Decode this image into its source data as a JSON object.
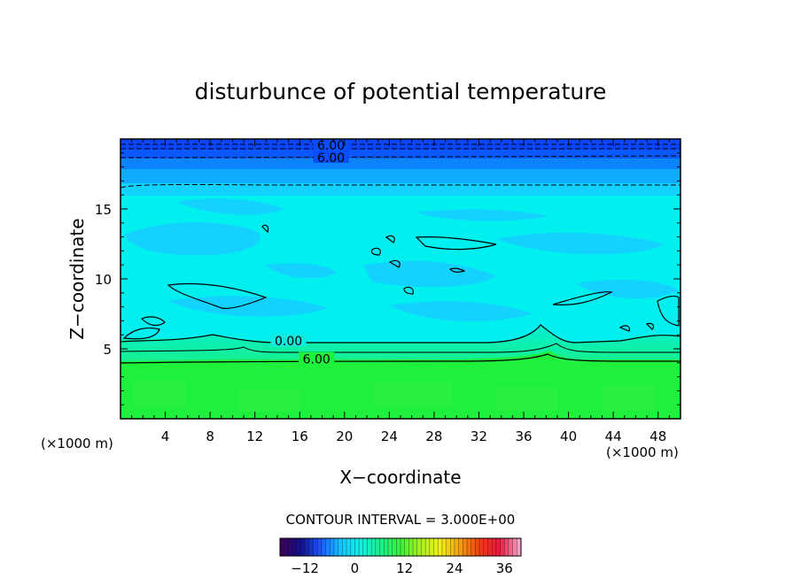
{
  "chart_data": {
    "type": "heatmap",
    "title": "disturbunce of potential temperature",
    "xlabel": "X−coordinate",
    "ylabel": "Z−coordinate",
    "x_unit_left": "(×1000 m)",
    "x_unit_right": "(×1000 m)",
    "xlim": [
      0,
      50
    ],
    "ylim": [
      0,
      20
    ],
    "x_ticks": [
      4,
      8,
      12,
      16,
      20,
      24,
      28,
      32,
      36,
      40,
      44,
      48
    ],
    "y_ticks": [
      5,
      10,
      15
    ],
    "contour_interval_text": "CONTOUR INTERVAL = 3.000E+00",
    "contour_labels": [
      {
        "text": "6.00",
        "x": 18.8,
        "z": 19.5
      },
      {
        "text": "6.00",
        "x": 18.8,
        "z": 18.6
      },
      {
        "text": "0.00",
        "x": 15.0,
        "z": 5.5
      },
      {
        "text": "6.00",
        "x": 17.5,
        "z": 4.2
      }
    ],
    "colorbar": {
      "min": -18,
      "max": 40,
      "ticks": [
        -12,
        0,
        12,
        24,
        36
      ],
      "stops": [
        "#3a005a",
        "#12128e",
        "#1c5cff",
        "#14c8ff",
        "#12f0e2",
        "#18f08a",
        "#3cf03c",
        "#a8f020",
        "#f0f018",
        "#f0a010",
        "#f03c10",
        "#e81840",
        "#f0a0c0"
      ]
    },
    "colors": {
      "lower_layer": "#1ef03c",
      "mid_layer": "#00f0f0",
      "patch_color": "#14d2ff",
      "top_band": "#0a46ff"
    }
  }
}
